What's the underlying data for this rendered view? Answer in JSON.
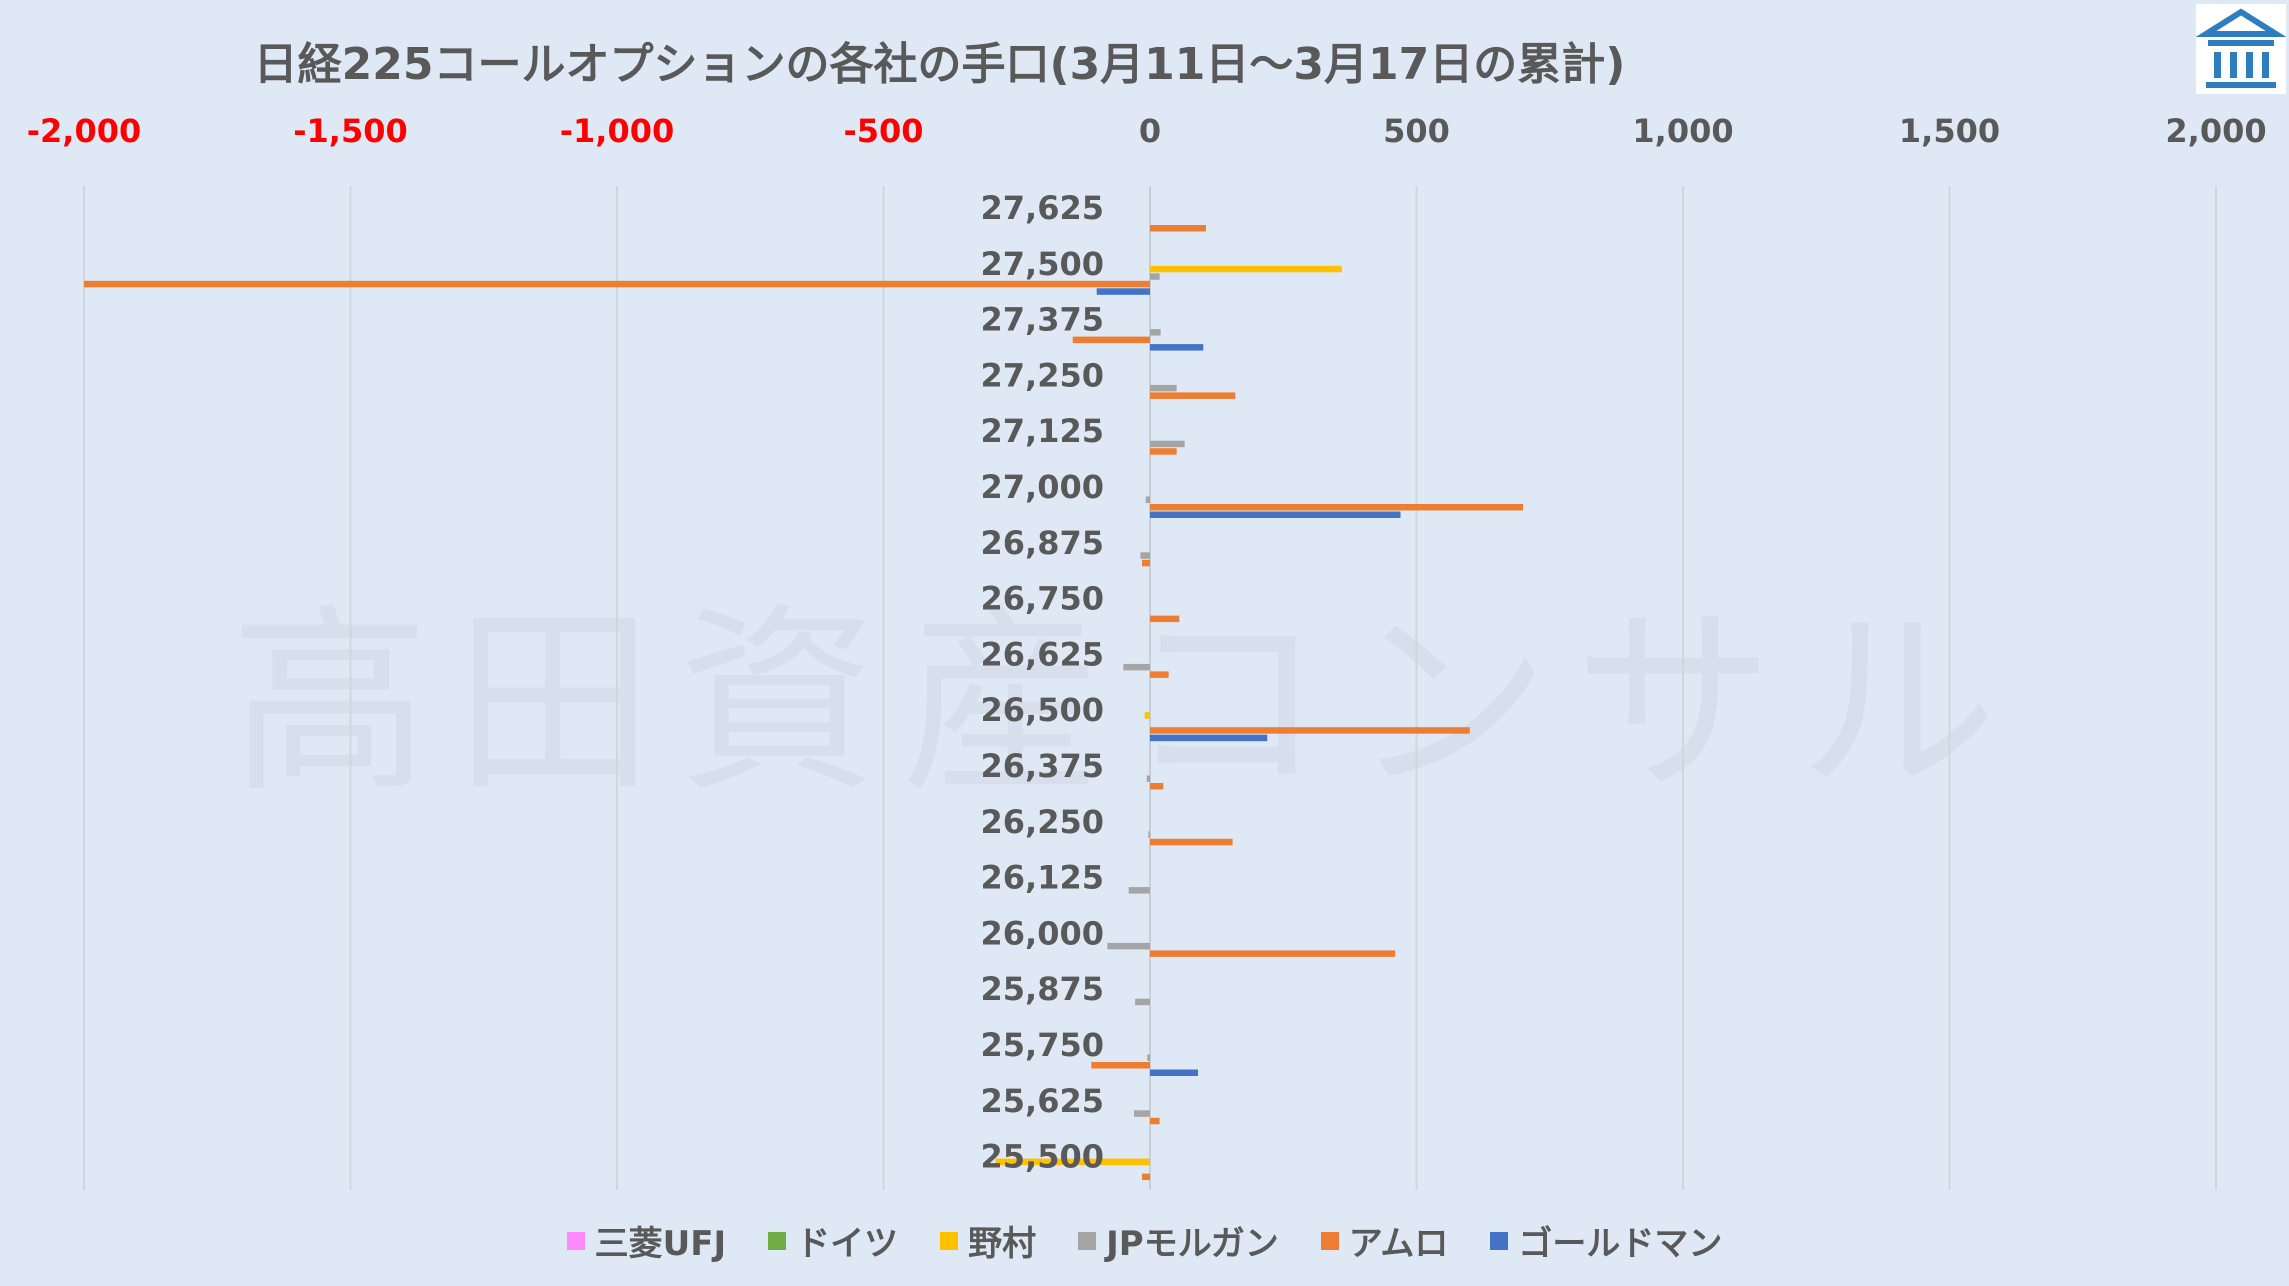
{
  "chart_data": {
    "type": "bar",
    "title": "日経225コールオプションの各社の手口(3月11日～3月17日の累計)",
    "orientation": "horizontal",
    "xlim": [
      -2000,
      2000
    ],
    "x_ticks": [
      "-2,000",
      "-1,500",
      "-1,000",
      "-500",
      "0",
      "500",
      "1,000",
      "1,500",
      "2,000"
    ],
    "x_tick_values": [
      -2000,
      -1500,
      -1000,
      -500,
      0,
      500,
      1000,
      1500,
      2000
    ],
    "negative_tick_color": "#ff0000",
    "positive_tick_color": "#595959",
    "grid": true,
    "legend_position": "bottom",
    "categories": [
      "27,625",
      "27,500",
      "27,375",
      "27,250",
      "27,125",
      "27,000",
      "26,875",
      "26,750",
      "26,625",
      "26,500",
      "26,375",
      "26,250",
      "26,125",
      "26,000",
      "25,875",
      "25,750",
      "25,625",
      "25,500"
    ],
    "series": [
      {
        "name": "三菱UFJ",
        "color": "#ff88ff",
        "values": [
          0,
          0,
          0,
          0,
          0,
          0,
          0,
          0,
          0,
          0,
          0,
          0,
          0,
          0,
          0,
          0,
          0,
          0
        ]
      },
      {
        "name": "ドイツ",
        "color": "#70ad47",
        "values": [
          0,
          0,
          0,
          0,
          0,
          0,
          0,
          0,
          0,
          0,
          0,
          0,
          0,
          0,
          0,
          0,
          0,
          0
        ]
      },
      {
        "name": "野村",
        "color": "#ffc000",
        "values": [
          0,
          360,
          0,
          0,
          0,
          0,
          0,
          0,
          0,
          -10,
          0,
          0,
          0,
          0,
          0,
          0,
          0,
          -290
        ]
      },
      {
        "name": "JPモルガン",
        "color": "#a5a5a5",
        "values": [
          0,
          18,
          20,
          50,
          65,
          -8,
          -18,
          0,
          -50,
          0,
          -6,
          -3,
          -40,
          -80,
          -28,
          -5,
          -30,
          0
        ]
      },
      {
        "name": "アムロ",
        "color": "#ed7d31",
        "values": [
          105,
          -2000,
          -145,
          160,
          50,
          700,
          -15,
          55,
          35,
          600,
          25,
          155,
          0,
          460,
          0,
          -110,
          18,
          -15
        ]
      },
      {
        "name": "ゴールドマン",
        "color": "#4472c4",
        "values": [
          0,
          -100,
          100,
          0,
          0,
          470,
          0,
          0,
          0,
          220,
          0,
          0,
          0,
          0,
          0,
          90,
          0,
          0
        ]
      }
    ]
  },
  "watermark": "高田資産コンサル",
  "logo": {
    "icon": "bank-building-icon",
    "color": "#2e7dbf"
  }
}
